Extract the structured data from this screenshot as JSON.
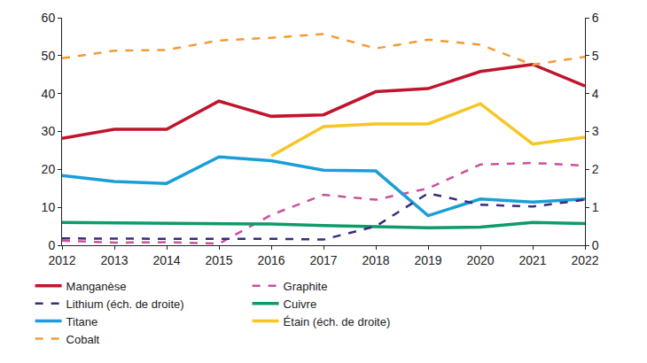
{
  "chart_data": {
    "type": "line",
    "x": [
      2012,
      2013,
      2014,
      2015,
      2016,
      2017,
      2018,
      2019,
      2020,
      2021,
      2022
    ],
    "xlim": [
      2012,
      2022
    ],
    "xticks": [
      2012,
      2013,
      2014,
      2015,
      2016,
      2017,
      2018,
      2019,
      2020,
      2021,
      2022
    ],
    "ylim": [
      0,
      60
    ],
    "yticks": [
      0,
      10,
      20,
      30,
      40,
      50,
      60
    ],
    "y2lim": [
      0,
      6
    ],
    "y2ticks": [
      0,
      1,
      2,
      3,
      4,
      5,
      6
    ],
    "grid": false,
    "legend": "bottom",
    "series": [
      {
        "name": "Manganèse",
        "color": "#c0142c",
        "line_style": "solid",
        "axis": "y",
        "values": [
          28.2,
          30.6,
          30.6,
          38.0,
          34.0,
          34.4,
          40.5,
          41.3,
          45.8,
          47.7,
          42.0
        ]
      },
      {
        "name": "Graphite",
        "color": "#c8519e",
        "line_style": "dash",
        "axis": "y",
        "values": [
          1.2,
          0.7,
          0.8,
          0.4,
          8.0,
          13.3,
          12.0,
          15.0,
          21.3,
          21.7,
          21.0
        ]
      },
      {
        "name": "Lithium (éch. de droite)",
        "color": "#3b2a7e",
        "line_style": "dash",
        "axis": "y2",
        "values": [
          0.18,
          0.17,
          0.17,
          0.17,
          0.17,
          0.15,
          0.5,
          1.37,
          1.07,
          1.02,
          1.2
        ]
      },
      {
        "name": "Cuivre",
        "color": "#0f9a6a",
        "line_style": "solid",
        "axis": "y",
        "values": [
          6.0,
          5.9,
          5.8,
          5.7,
          5.6,
          5.2,
          4.9,
          4.6,
          4.8,
          6.0,
          5.7
        ]
      },
      {
        "name": "Titane",
        "color": "#1a9ed8",
        "line_style": "solid",
        "axis": "y",
        "values": [
          18.4,
          16.8,
          16.3,
          23.3,
          22.3,
          19.8,
          19.6,
          7.8,
          12.2,
          11.4,
          12.2
        ]
      },
      {
        "name": "Étain (éch. de droite)",
        "color": "#f6c624",
        "line_style": "solid",
        "axis": "y2",
        "values": [
          null,
          null,
          null,
          null,
          2.35,
          3.13,
          3.2,
          3.2,
          3.73,
          2.67,
          2.85
        ]
      },
      {
        "name": "Cobalt",
        "color": "#f39a36",
        "line_style": "dash",
        "axis": "y",
        "values": [
          49.3,
          51.3,
          51.5,
          54.0,
          54.7,
          55.7,
          51.9,
          54.2,
          52.9,
          47.6,
          49.7
        ]
      }
    ]
  }
}
